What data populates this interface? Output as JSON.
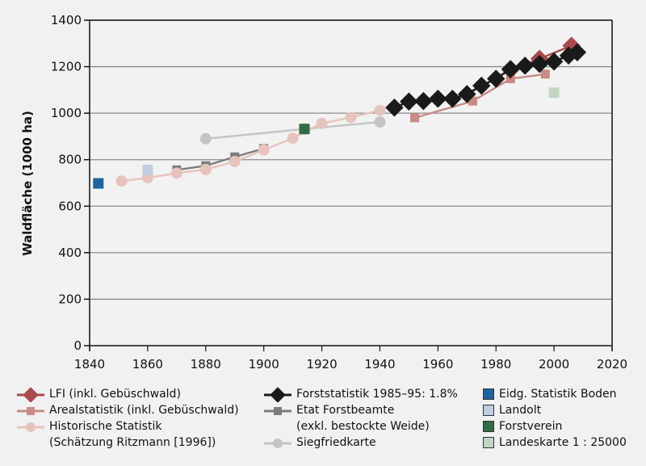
{
  "chart_data": {
    "type": "line",
    "title": "",
    "xlabel": "",
    "ylabel": "Waldfläche (1000 ha)",
    "xlim": [
      1840,
      2020
    ],
    "ylim": [
      0,
      1400
    ],
    "xticks": [
      1840,
      1860,
      1880,
      1900,
      1920,
      1940,
      1960,
      1980,
      2000,
      2020
    ],
    "yticks": [
      0,
      200,
      400,
      600,
      800,
      1000,
      1200,
      1400
    ],
    "grid": "horizontal",
    "legend_position": "bottom",
    "series": [
      {
        "name": "LFI (inkl. Gebüschwald)",
        "kind": "line",
        "marker": "diamond",
        "color": "#a84a4f",
        "x": [
          1985,
          1995,
          2006
        ],
        "y": [
          1186,
          1234,
          1290
        ]
      },
      {
        "name": "Arealstatistik (inkl. Gebüschwald)",
        "kind": "line",
        "marker": "square",
        "color": "#c88a86",
        "x": [
          1952,
          1972,
          1985,
          1997
        ],
        "y": [
          980,
          1052,
          1148,
          1168
        ]
      },
      {
        "name": "Historische Statistik\n(Schätzung Ritzmann [1996])",
        "kind": "line",
        "marker": "circle",
        "color": "#e7c3bd",
        "x": [
          1851,
          1860,
          1870,
          1880,
          1890,
          1900,
          1910,
          1920,
          1930,
          1940
        ],
        "y": [
          708,
          722,
          742,
          758,
          792,
          842,
          892,
          956,
          982,
          1012
        ]
      },
      {
        "name": "Forststatistik 1985–95: 1.8%",
        "kind": "line",
        "marker": "diamond",
        "color": "#1a1a1a",
        "x": [
          1945,
          1950,
          1955,
          1960,
          1965,
          1970,
          1975,
          1980,
          1985,
          1990,
          1995,
          2000,
          2005,
          2008
        ],
        "y": [
          1024,
          1050,
          1052,
          1062,
          1062,
          1082,
          1118,
          1148,
          1190,
          1204,
          1212,
          1222,
          1248,
          1262
        ]
      },
      {
        "name": "Etat Forstbeamte\n(exkl. bestockte Weide)",
        "kind": "line",
        "marker": "square",
        "color": "#7d7d7d",
        "x": [
          1870,
          1880,
          1890,
          1900
        ],
        "y": [
          756,
          774,
          812,
          848
        ]
      },
      {
        "name": "Siegfriedkarte",
        "kind": "line",
        "marker": "circle",
        "color": "#c4c4c4",
        "x": [
          1880,
          1914,
          1940
        ],
        "y": [
          890,
          932,
          962
        ]
      },
      {
        "name": "Eidg. Statistik Boden",
        "kind": "point",
        "marker": "square",
        "color": "#20639b",
        "x": [
          1843
        ],
        "y": [
          698
        ]
      },
      {
        "name": "Landolt",
        "kind": "point",
        "marker": "square",
        "color": "#c2cde3",
        "x": [
          1860
        ],
        "y": [
          756
        ]
      },
      {
        "name": "Forstverein",
        "kind": "point",
        "marker": "square",
        "color": "#336b45",
        "x": [
          1914
        ],
        "y": [
          932
        ]
      },
      {
        "name": "Landeskarte 1 : 25000",
        "kind": "point",
        "marker": "square",
        "color": "#c3d5c3",
        "x": [
          2000
        ],
        "y": [
          1088
        ]
      }
    ]
  }
}
